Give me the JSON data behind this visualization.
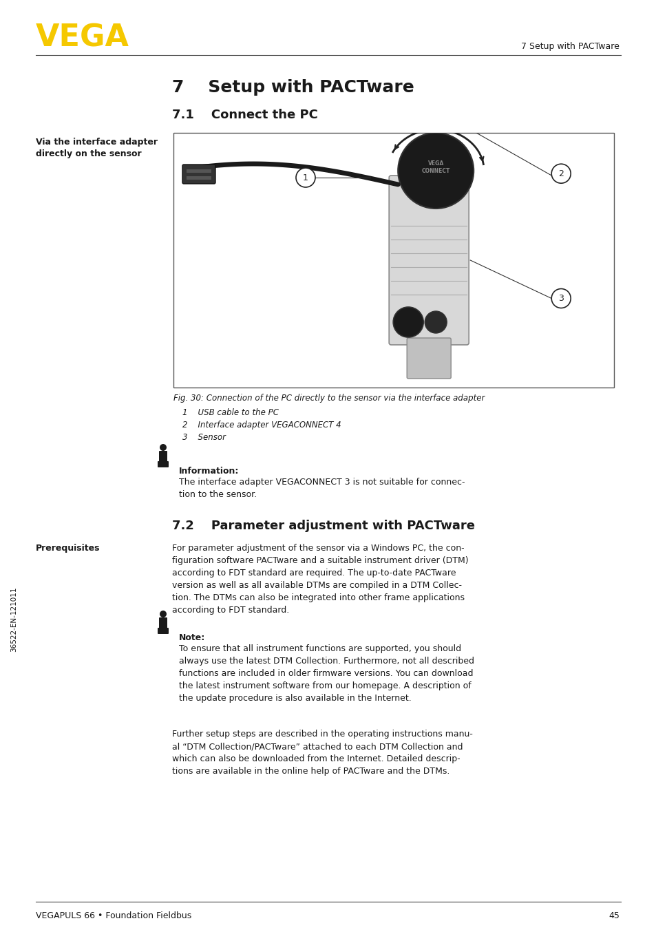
{
  "page_bg": "#ffffff",
  "vega_logo_text": "VEGA",
  "vega_logo_color": "#F5C800",
  "header_right_text": "7 Setup with PACTware",
  "footer_left_text": "VEGAPULS 66 • Foundation Fieldbus",
  "footer_right_text": "45",
  "left_margin_note_1_line1": "Via the interface adapter",
  "left_margin_note_1_line2": "directly on the sensor",
  "section_7_title": "7    Setup with PACTware",
  "section_71_title": "7.1    Connect the PC",
  "fig_caption": "Fig. 30: Connection of the PC directly to the sensor via the interface adapter",
  "fig_list": [
    "1    USB cable to the PC",
    "2    Interface adapter VEGACONNECT 4",
    "3    Sensor"
  ],
  "info_title": "Information:",
  "info_text": "The interface adapter VEGACONNECT 3 is not suitable for connec-\ntion to the sensor.",
  "section_72_title": "7.2    Parameter adjustment with PACTware",
  "prereq_label": "Prerequisites",
  "prereq_text": "For parameter adjustment of the sensor via a Windows PC, the con-\nfiguration software PACTware and a suitable instrument driver (DTM)\naccording to FDT standard are required. The up-to-date PACTware\nversion as well as all available DTMs are compiled in a DTM Collec-\ntion. The DTMs can also be integrated into other frame applications\naccording to FDT standard.",
  "note_title": "Note:",
  "note_text": "To ensure that all instrument functions are supported, you should\nalways use the latest DTM Collection. Furthermore, not all described\nfunctions are included in older firmware versions. You can download\nthe latest instrument software from our homepage. A description of\nthe update procedure is also available in the Internet.",
  "further_text_1": "Further setup steps are described in the operating instructions manu-\nal “",
  "further_text_italic": "DTM Collection/PACTware",
  "further_text_2": "” attached to each DTM Collection and\nwhich can also be downloaded from the Internet. Detailed descrip-\ntions are available in the online help of PACTware and the DTMs.",
  "side_text": "36522-EN-121011",
  "text_color": "#1a1a1a",
  "icon_color": "#1a1a1a"
}
